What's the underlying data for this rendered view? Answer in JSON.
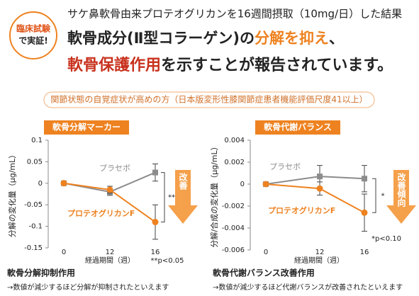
{
  "header": {
    "badge": [
      "臨床試験",
      "で実証!"
    ],
    "line1": "サケ鼻軟骨由来プロテオグリカンを16週間摂取（10mg/日）した結果",
    "line2": [
      "軟骨成分(Ⅱ型コラーゲン)の",
      "分解を抑え",
      "、"
    ],
    "line3": [
      "軟骨保護作用",
      "を示すことが報告されています。"
    ],
    "subtitle": "関節状態の自覚症状が高めの方（日本版変形性膝関節症患者機能評価尺度41以上）"
  },
  "chart_data": [
    {
      "type": "line",
      "title": "軟骨分解マーカー",
      "ylabel": "分解の変化量（μg/mL）",
      "xlabel": "経過期間（週）",
      "categories": [
        "0",
        "12",
        "16"
      ],
      "ylim": [
        -0.15,
        0.1
      ],
      "yticks": [
        0.1,
        0.05,
        0,
        -0.05,
        -0.1,
        -0.15
      ],
      "series": [
        {
          "name": "プラセボ",
          "color": "#8c8c8c",
          "values": [
            0,
            -0.02,
            0.025
          ],
          "errors": [
            null,
            0.008,
            0.02
          ]
        },
        {
          "name": "プロテオグリカンF",
          "color": "#ee8220",
          "values": [
            0,
            -0.015,
            -0.09
          ],
          "errors": [
            null,
            0.008,
            0.04
          ]
        }
      ],
      "annotations": [
        "**",
        "**p<0.05",
        "改善"
      ]
    },
    {
      "type": "line",
      "title": "軟骨代謝バランス",
      "ylabel": "分解/合成の変化量（μg/mL）",
      "xlabel": "経過期間（週）",
      "categories": [
        "0",
        "12",
        "16"
      ],
      "ylim": [
        -0.006,
        0.004
      ],
      "yticks": [
        0.004,
        0.002,
        0,
        -0.002,
        -0.004,
        -0.006
      ],
      "series": [
        {
          "name": "プラセボ",
          "color": "#8c8c8c",
          "values": [
            0,
            0.0007,
            0.0005
          ],
          "errors": [
            null,
            0.001,
            0.0012
          ]
        },
        {
          "name": "プロテオグリカンF",
          "color": "#ee8220",
          "values": [
            0,
            -0.0004,
            -0.0026
          ],
          "errors": [
            null,
            0.0006,
            0.0017
          ]
        }
      ],
      "annotations": [
        "*",
        "*p<0.10",
        "改善傾向"
      ]
    }
  ],
  "footer": [
    {
      "title": "軟骨分解抑制作用",
      "text": "→数値が減少するほど分解が抑制されたといえます"
    },
    {
      "title": "軟骨代謝バランス改善作用",
      "text": "→数値が減少するほど代謝バランスが改善されたといえます"
    }
  ]
}
